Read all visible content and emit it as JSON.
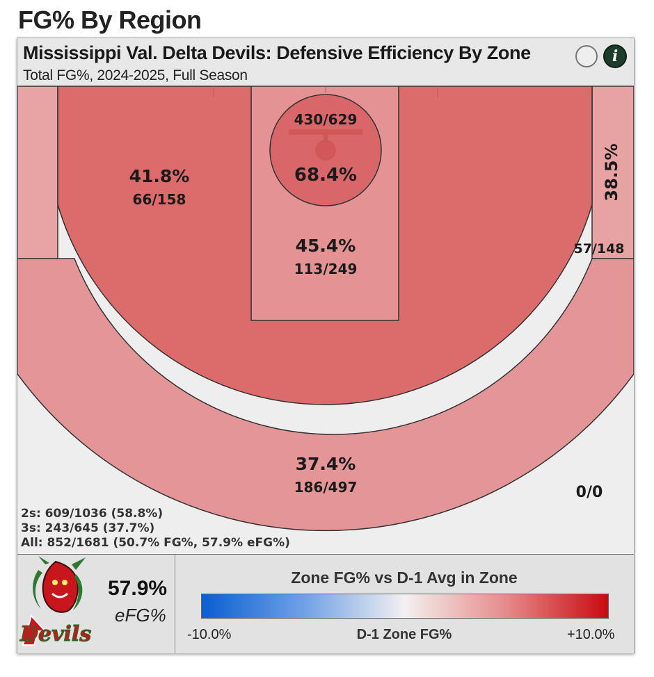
{
  "page": {
    "title": "FG% By Region"
  },
  "header": {
    "title": "Mississippi Val. Delta Devils: Defensive Efficiency By Zone",
    "subtitle": "Total FG%, 2024-2025, Full Season",
    "info_glyph": "i"
  },
  "chart_data": {
    "type": "heatmap",
    "title": "Mississippi Val. Delta Devils: Defensive Efficiency By Zone",
    "subtitle": "Total FG%, 2024-2025, Full Season",
    "zones": [
      {
        "id": "rim",
        "pct": "68.4%",
        "made_att": "430/629",
        "made": 430,
        "attempts": 629,
        "color": "#d9676a"
      },
      {
        "id": "paint",
        "pct": "45.4%",
        "made_att": "113/249",
        "made": 113,
        "attempts": 249,
        "color": "#e49294"
      },
      {
        "id": "midrange",
        "pct": "41.8%",
        "made_att": "66/158",
        "made": 66,
        "attempts": 158,
        "color": "#dc6b6b"
      },
      {
        "id": "right-corner-three",
        "pct": "38.5%",
        "made_att": "57/148",
        "made": 57,
        "attempts": 148,
        "color": "#e7a2a4"
      },
      {
        "id": "above-break-three",
        "pct": "37.4%",
        "made_att": "186/497",
        "made": 186,
        "attempts": 497,
        "color": "#e49597"
      },
      {
        "id": "left-corner-three",
        "pct": "",
        "made_att": "",
        "color": "#e8a3a5"
      },
      {
        "id": "deep",
        "pct": "",
        "made_att": "0/0",
        "made": 0,
        "attempts": 0,
        "color": "#eeeeee"
      }
    ],
    "summary": {
      "twos": "2s: 609/1036 (58.8%)",
      "threes": "3s: 243/645 (37.7%)",
      "all": "All: 852/1681 (50.7% FG%, 57.9% eFG%)"
    },
    "legend": {
      "title": "Zone FG% vs D-1 Avg in Zone",
      "min_label": "-10.0%",
      "max_label": "+10.0%",
      "axis_label": "D-1 Zone FG%",
      "range": [
        -10.0,
        10.0
      ],
      "colors": [
        "#0a5fd0",
        "#f3f0f0",
        "#c80a10"
      ]
    }
  },
  "footer": {
    "efg_value": "57.9%",
    "efg_label": "eFG%",
    "logo_icon": "delta-devils-logo",
    "logo_text": "Devils"
  }
}
